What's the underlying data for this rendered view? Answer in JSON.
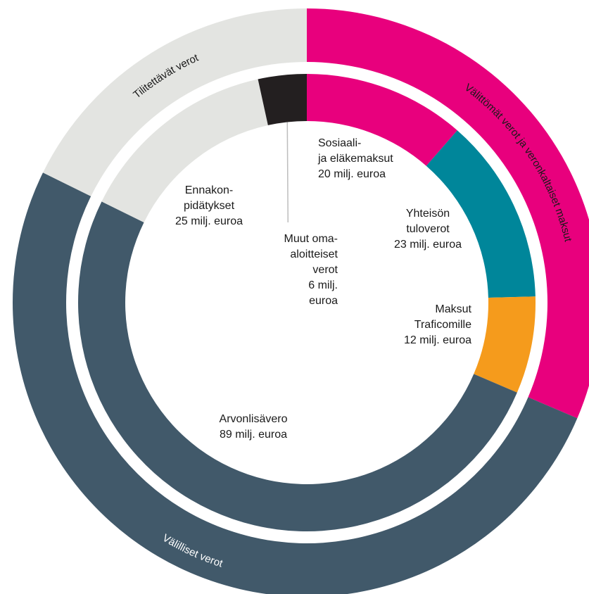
{
  "chart_data": {
    "type": "pie",
    "style": "nested-donut",
    "inner_ring": {
      "unit": "milj. euroa",
      "slices": [
        {
          "name": "Sosiaali- ja eläkemaksut",
          "value": 20,
          "label_lines": [
            "Sosiaali-",
            "ja eläkemaksut",
            "20 milj. euroa"
          ],
          "color": "#E8007D"
        },
        {
          "name": "Yhteisön tuloverot",
          "value": 23,
          "label_lines": [
            "Yhteisön",
            "tuloverot",
            "23 milj. euroa"
          ],
          "color": "#00869A"
        },
        {
          "name": "Maksut Traficomille",
          "value": 12,
          "label_lines": [
            "Maksut",
            "Traficomille",
            "12 milj. euroa"
          ],
          "color": "#F59B1C"
        },
        {
          "name": "Arvonlisävero",
          "value": 89,
          "label_lines": [
            "Arvonlisävero",
            "89 milj. euroa"
          ],
          "color": "#41596A"
        },
        {
          "name": "Ennakonpidätykset",
          "value": 25,
          "label_lines": [
            "Ennakon-",
            "pidätykset",
            "25 milj. euroa"
          ],
          "color": "#E3E4E1"
        },
        {
          "name": "Muut omaaloitteiset verot",
          "value": 6,
          "label_lines": [
            "Muut oma-",
            "aloitteiset",
            "verot",
            "6 milj.",
            "euroa"
          ],
          "color": "#231F20"
        }
      ]
    },
    "outer_ring": {
      "slices": [
        {
          "name": "Välittömät verot ja veronkaltaiset maksut",
          "value": 55,
          "color": "#E8007D",
          "text_color": "#1a1a1a"
        },
        {
          "name": "Välilliset verot",
          "value": 89,
          "color": "#41596A",
          "text_color": "#ffffff"
        },
        {
          "name": "Tilitettävät verot",
          "value": 31,
          "color": "#E3E4E1",
          "text_color": "#1a1a1a"
        }
      ]
    }
  }
}
